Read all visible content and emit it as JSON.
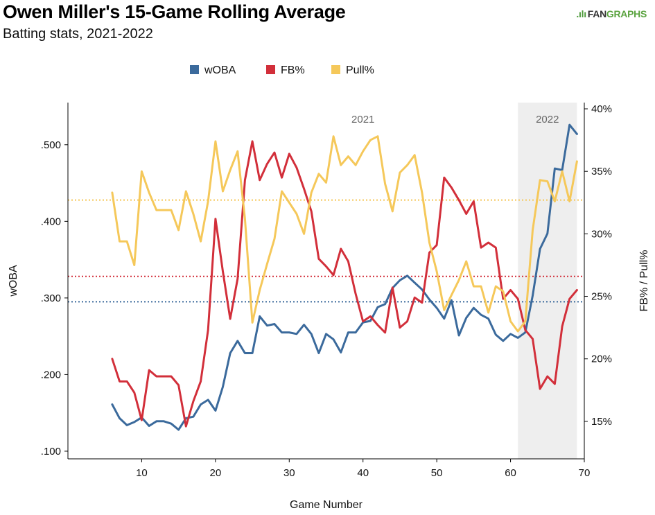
{
  "header": {
    "title": "Owen Miller's 15-Game Rolling Average",
    "subtitle": "Batting stats, 2021-2022",
    "logo_mark": ".ılı",
    "logo_fan": "FAN",
    "logo_graphs": "GRAPHS"
  },
  "colors": {
    "woba": "#3b6a9c",
    "fb": "#d22f3a",
    "pull": "#f5c85a",
    "shade": "#eeeeee"
  },
  "chart_data": {
    "type": "line",
    "title": "Owen Miller's 15-Game Rolling Average",
    "subtitle": "Batting stats, 2021-2022",
    "xlabel": "Game Number",
    "ylabel_left": "wOBA",
    "ylabel_right": "FB% / Pull%",
    "xlim": [
      0,
      70
    ],
    "ylim_left": [
      0.09,
      0.555
    ],
    "ylim_right": [
      12,
      40.5
    ],
    "x_ticks": [
      10,
      20,
      30,
      40,
      50,
      60,
      70
    ],
    "x_tick_labels": [
      "10",
      "20",
      "30",
      "40",
      "50",
      "60",
      "70"
    ],
    "y_left_ticks": [
      0.1,
      0.2,
      0.3,
      0.4,
      0.5
    ],
    "y_left_tick_labels": [
      ".100",
      ".200",
      ".300",
      ".400",
      ".500"
    ],
    "y_right_ticks": [
      15,
      20,
      25,
      30,
      35,
      40
    ],
    "y_right_tick_labels": [
      "15%",
      "20%",
      "25%",
      "30%",
      "35%",
      "40%"
    ],
    "legend": [
      "wOBA",
      "FB%",
      "Pull%"
    ],
    "periods": [
      {
        "label": "2021",
        "x_label": 40,
        "shaded": false
      },
      {
        "label": "2022",
        "start": 61,
        "end": 69,
        "x_label": 65,
        "shaded": true
      }
    ],
    "x": [
      6,
      7,
      8,
      9,
      10,
      11,
      12,
      13,
      14,
      15,
      16,
      17,
      18,
      19,
      20,
      21,
      22,
      23,
      24,
      25,
      26,
      27,
      28,
      29,
      30,
      31,
      32,
      33,
      34,
      35,
      36,
      37,
      38,
      39,
      40,
      41,
      42,
      43,
      44,
      45,
      46,
      47,
      48,
      49,
      50,
      51,
      52,
      53,
      54,
      55,
      56,
      57,
      58,
      59,
      60,
      61,
      62,
      63,
      64,
      65,
      66,
      67,
      68,
      69
    ],
    "series": [
      {
        "name": "wOBA",
        "axis": "left",
        "reference": 0.295,
        "values": [
          0.161,
          0.143,
          0.134,
          0.138,
          0.144,
          0.133,
          0.139,
          0.139,
          0.136,
          0.128,
          0.143,
          0.145,
          0.161,
          0.167,
          0.153,
          0.184,
          0.228,
          0.244,
          0.228,
          0.228,
          0.276,
          0.264,
          0.266,
          0.255,
          0.255,
          0.253,
          0.265,
          0.253,
          0.228,
          0.253,
          0.246,
          0.229,
          0.255,
          0.255,
          0.268,
          0.27,
          0.288,
          0.292,
          0.313,
          0.323,
          0.329,
          0.32,
          0.311,
          0.298,
          0.287,
          0.273,
          0.297,
          0.251,
          0.274,
          0.287,
          0.278,
          0.273,
          0.252,
          0.244,
          0.253,
          0.248,
          0.255,
          0.303,
          0.364,
          0.384,
          0.469,
          0.467,
          0.526,
          0.514
        ]
      },
      {
        "name": "FB%",
        "axis": "right",
        "reference": 26.6,
        "values": [
          20.0,
          18.2,
          18.2,
          17.3,
          15.1,
          19.1,
          18.6,
          18.6,
          18.6,
          17.9,
          14.6,
          16.6,
          18.2,
          22.3,
          31.2,
          27.0,
          23.2,
          26.4,
          34.3,
          37.4,
          34.3,
          35.6,
          36.5,
          34.5,
          36.4,
          35.3,
          33.6,
          31.8,
          28.0,
          27.4,
          26.7,
          28.8,
          27.8,
          25.2,
          23.0,
          23.4,
          22.7,
          22.1,
          25.7,
          22.5,
          23.0,
          24.9,
          24.5,
          28.5,
          29.1,
          34.5,
          33.7,
          32.7,
          31.6,
          32.6,
          28.9,
          29.3,
          28.9,
          24.8,
          25.5,
          24.8,
          22.3,
          21.6,
          17.6,
          18.6,
          18.0,
          22.6,
          24.8,
          25.5
        ]
      },
      {
        "name": "Pull%",
        "axis": "right",
        "reference": 32.7,
        "values": [
          33.3,
          29.4,
          29.4,
          27.5,
          35.0,
          33.3,
          31.9,
          31.9,
          31.9,
          30.3,
          33.4,
          31.6,
          29.4,
          32.6,
          37.4,
          33.4,
          35.1,
          36.6,
          31.2,
          22.9,
          25.5,
          27.6,
          29.6,
          33.4,
          32.5,
          31.6,
          30.0,
          33.3,
          34.8,
          34.1,
          37.8,
          35.5,
          36.2,
          35.5,
          36.6,
          37.5,
          37.8,
          34.0,
          31.8,
          34.9,
          35.5,
          36.3,
          33.3,
          29.3,
          27.0,
          23.9,
          25.1,
          26.3,
          27.8,
          25.8,
          25.8,
          23.7,
          25.8,
          25.4,
          23.0,
          22.2,
          23.0,
          30.3,
          34.3,
          34.2,
          32.6,
          35.0,
          32.6,
          35.8
        ]
      }
    ]
  }
}
